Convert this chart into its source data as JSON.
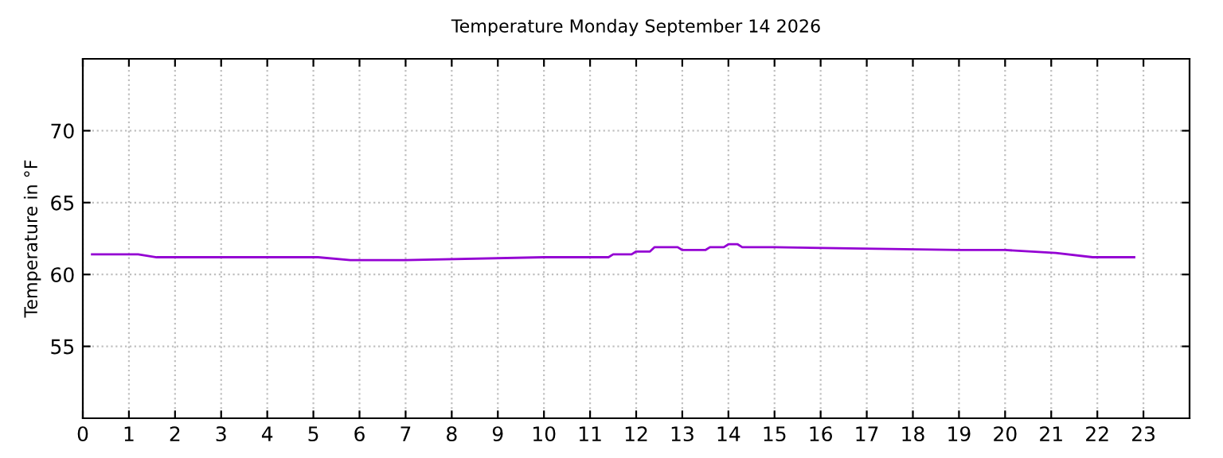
{
  "chart_data": {
    "type": "line",
    "title": "Temperature Monday September 14 2026",
    "ylabel": "Temperature in °F",
    "series": [
      {
        "color": "#9400d3",
        "x": [
          0.2,
          1.2,
          1.6,
          5.1,
          5.8,
          7.0,
          10.0,
          11.4,
          11.5,
          11.9,
          12.0,
          12.3,
          12.4,
          12.9,
          13.0,
          13.5,
          13.6,
          13.9,
          14.0,
          14.2,
          14.3,
          15.0,
          19.0,
          20.0,
          21.1,
          21.9,
          22.8
        ],
        "values": [
          61.4,
          61.4,
          61.2,
          61.2,
          61.0,
          61.0,
          61.2,
          61.2,
          61.4,
          61.4,
          61.6,
          61.6,
          61.9,
          61.9,
          61.7,
          61.7,
          61.9,
          61.9,
          62.1,
          62.1,
          61.9,
          61.9,
          61.7,
          61.7,
          61.5,
          61.2,
          61.2
        ]
      }
    ],
    "xlim": [
      0,
      24
    ],
    "xticks": [
      0,
      1,
      2,
      3,
      4,
      5,
      6,
      7,
      8,
      9,
      10,
      11,
      12,
      13,
      14,
      15,
      16,
      17,
      18,
      19,
      20,
      21,
      22,
      23
    ],
    "ylim": [
      50,
      75
    ],
    "yticks": [
      55,
      60,
      65,
      70
    ],
    "grid": true,
    "line_style": "solid"
  }
}
